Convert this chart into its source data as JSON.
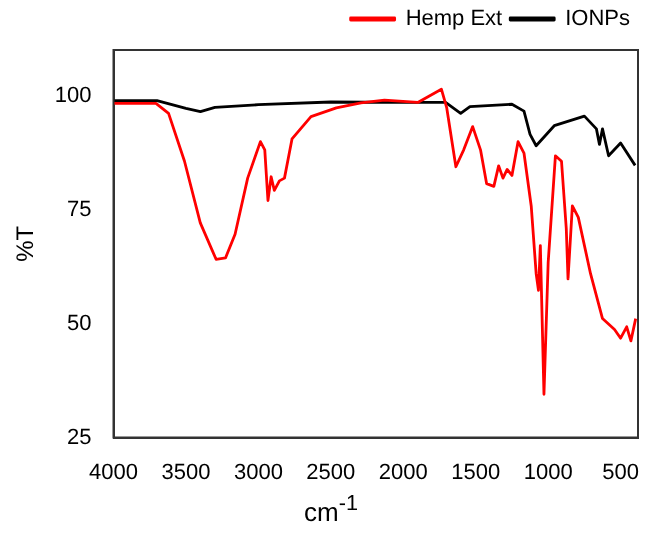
{
  "chart_data": {
    "type": "line",
    "xlabel": "cm$^{-1}$",
    "ylabel": "%T",
    "xlim": [
      4000,
      380
    ],
    "xticks": [
      4000,
      3500,
      3000,
      2500,
      2000,
      1500,
      1000,
      500
    ],
    "ylim": [
      25,
      110
    ],
    "yticks": [
      25,
      50,
      75,
      100
    ],
    "grid": false,
    "legend": "top right",
    "marker": "none",
    "line_style": "solid",
    "series": [
      {
        "name": "IONPs",
        "color": "#000000",
        "x": [
          4000,
          3700,
          3500,
          3400,
          3300,
          3000,
          2500,
          2000,
          1708,
          1604,
          1540,
          1250,
          1167,
          1125,
          1083,
          958,
          750,
          667,
          646,
          625,
          583,
          500,
          400
        ],
        "values": [
          98.9,
          98.9,
          97.2,
          96.5,
          97.4,
          98.0,
          98.6,
          98.5,
          98.5,
          96.1,
          97.6,
          98.1,
          96.6,
          91.5,
          89.0,
          93.4,
          95.5,
          92.7,
          89.3,
          92.7,
          86.8,
          89.6,
          84.7
        ]
      },
      {
        "name": "Hemp Ext",
        "color": "#ff0000",
        "x": [
          4000,
          3707,
          3620,
          3510,
          3401,
          3292,
          3227,
          3161,
          3074,
          2986,
          2956,
          2934,
          2912,
          2890,
          2855,
          2820,
          2768,
          2637,
          2462,
          2292,
          2130,
          1900,
          1737,
          1700,
          1637,
          1583,
          1521,
          1467,
          1425,
          1375,
          1342,
          1312,
          1283,
          1250,
          1208,
          1167,
          1117,
          1083,
          1067,
          1054,
          1029,
          1000,
          950,
          908,
          875,
          863,
          833,
          792,
          708,
          625,
          542,
          500,
          458,
          429,
          396
        ],
        "values": [
          98.3,
          98.3,
          96.1,
          85.6,
          72.1,
          64.1,
          64.4,
          69.6,
          81.9,
          89.9,
          88.1,
          77.0,
          82.2,
          79.2,
          81.3,
          81.9,
          90.5,
          95.4,
          97.3,
          98.4,
          99.0,
          98.5,
          101.4,
          97.3,
          84.4,
          88.1,
          93.2,
          88.1,
          80.7,
          80.1,
          84.6,
          81.9,
          83.8,
          82.5,
          89.9,
          87.4,
          75.8,
          61.0,
          57.3,
          67.1,
          34.5,
          63.4,
          86.8,
          85.6,
          70.8,
          59.8,
          75.8,
          73.3,
          61.0,
          51.1,
          48.7,
          46.8,
          49.3,
          46.2,
          51.1
        ]
      }
    ]
  }
}
